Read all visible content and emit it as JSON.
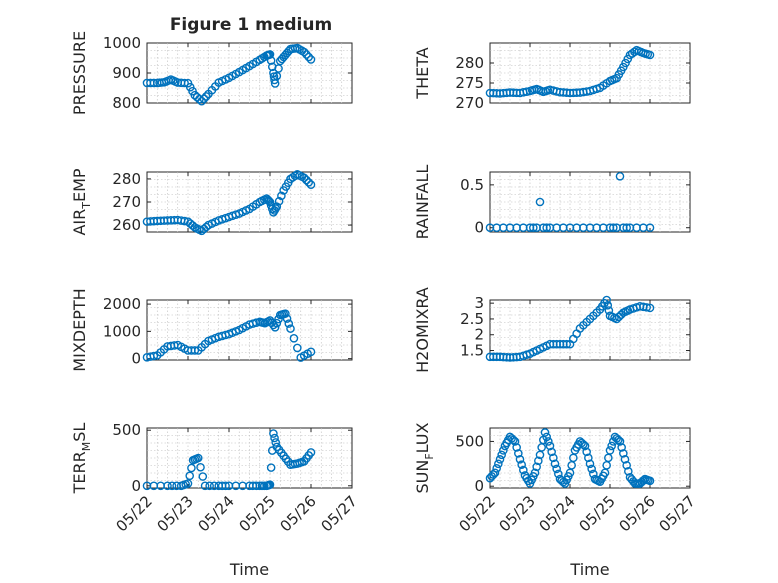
{
  "figure": {
    "title": "Figure 1 medium"
  },
  "colors": {
    "marker": "#0072BD",
    "axes": "#262626",
    "grid": "#bdbdbd"
  },
  "chart_data": [
    {
      "type": "scatter",
      "ylabel": "PRESSURE",
      "ylim": [
        800,
        1000
      ],
      "yticks": [
        800,
        900,
        1000
      ],
      "grid": true,
      "x": [
        "05/22 00:00",
        "05/22 06:00",
        "05/22 10:00",
        "05/22 14:00",
        "05/22 18:00",
        "05/23 00:00",
        "05/23 04:00",
        "05/23 08:00",
        "05/23 12:00",
        "05/23 18:00",
        "05/24 00:00",
        "05/24 06:00",
        "05/24 12:00",
        "05/24 18:00",
        "05/24 22:00",
        "05/25 00:00",
        "05/25 02:00",
        "05/25 03:00",
        "05/25 06:00",
        "05/25 09:00",
        "05/25 12:00",
        "05/25 16:00",
        "05/25 20:00",
        "05/26 00:00"
      ],
      "y": [
        867,
        867,
        869,
        878,
        868,
        866,
        826,
        806,
        830,
        868,
        884,
        903,
        923,
        944,
        958,
        962,
        900,
        865,
        940,
        960,
        980,
        983,
        970,
        945
      ]
    },
    {
      "type": "scatter",
      "ylabel": "THETA",
      "ylim": [
        270,
        285
      ],
      "yticks": [
        270,
        275,
        280
      ],
      "grid": true,
      "x": [
        "05/22 00:00",
        "05/22 06:00",
        "05/22 12:00",
        "05/22 18:00",
        "05/23 00:00",
        "05/23 04:00",
        "05/23 08:00",
        "05/23 12:00",
        "05/23 18:00",
        "05/24 00:00",
        "05/24 06:00",
        "05/24 12:00",
        "05/24 18:00",
        "05/25 00:00",
        "05/25 04:00",
        "05/25 08:00",
        "05/25 12:00",
        "05/25 16:00",
        "05/25 20:00",
        "05/26 00:00"
      ],
      "y": [
        272.5,
        272.4,
        272.6,
        272.5,
        273.0,
        273.5,
        272.8,
        273.3,
        272.7,
        272.5,
        272.6,
        273.0,
        273.8,
        275.5,
        276.2,
        279.0,
        282.0,
        283.2,
        282.5,
        282.0
      ]
    },
    {
      "type": "scatter",
      "ylabel": "AIR_TEMP",
      "ylim": [
        257,
        283
      ],
      "yticks": [
        260,
        270,
        280
      ],
      "grid": true,
      "x": [
        "05/22 00:00",
        "05/22 06:00",
        "05/22 12:00",
        "05/22 18:00",
        "05/23 00:00",
        "05/23 04:00",
        "05/23 08:00",
        "05/23 12:00",
        "05/23 18:00",
        "05/24 00:00",
        "05/24 06:00",
        "05/24 12:00",
        "05/24 18:00",
        "05/24 22:00",
        "05/25 00:00",
        "05/25 02:00",
        "05/25 04:00",
        "05/25 08:00",
        "05/25 12:00",
        "05/25 16:00",
        "05/25 20:00",
        "05/26 00:00"
      ],
      "y": [
        261.5,
        261.8,
        262.0,
        262.2,
        261.5,
        259.0,
        257.5,
        260.0,
        262.0,
        263.5,
        265.0,
        267.0,
        270.0,
        271.5,
        270.0,
        265.5,
        268.0,
        275.0,
        280.0,
        282.0,
        280.5,
        277.5
      ]
    },
    {
      "type": "scatter",
      "ylabel": "RAINFALL",
      "ylim": [
        -0.05,
        0.65
      ],
      "yticks": [
        0,
        0.5
      ],
      "grid": true,
      "x": [
        "05/22 00:00",
        "05/22 12:00",
        "05/23 00:00",
        "05/23 06:00",
        "05/23 12:00",
        "05/24 00:00",
        "05/24 12:00",
        "05/25 00:00",
        "05/25 06:00",
        "05/25 12:00",
        "05/26 00:00"
      ],
      "y": [
        0,
        0,
        0,
        0.3,
        0,
        0,
        0,
        0,
        0.6,
        0,
        0
      ]
    },
    {
      "type": "scatter",
      "ylabel": "MIXDEPTH",
      "ylim": [
        -50,
        2150
      ],
      "yticks": [
        0,
        1000,
        2000
      ],
      "grid": true,
      "x": [
        "05/22 00:00",
        "05/22 06:00",
        "05/22 12:00",
        "05/22 18:00",
        "05/23 00:00",
        "05/23 06:00",
        "05/23 12:00",
        "05/23 18:00",
        "05/24 00:00",
        "05/24 06:00",
        "05/24 12:00",
        "05/24 18:00",
        "05/24 21:00",
        "05/25 00:00",
        "05/25 03:00",
        "05/25 06:00",
        "05/25 09:00",
        "05/25 12:00",
        "05/25 18:00",
        "05/26 00:00"
      ],
      "y": [
        50,
        120,
        450,
        500,
        300,
        300,
        650,
        800,
        900,
        1050,
        1250,
        1350,
        1300,
        1400,
        1150,
        1600,
        1650,
        1100,
        40,
        250
      ]
    },
    {
      "type": "scatter",
      "ylabel": "H2OMIXRA",
      "ylim": [
        1.2,
        3.1
      ],
      "yticks": [
        1.5,
        2,
        2.5,
        3
      ],
      "grid": true,
      "x": [
        "05/22 00:00",
        "05/22 06:00",
        "05/22 12:00",
        "05/22 18:00",
        "05/23 00:00",
        "05/23 06:00",
        "05/23 12:00",
        "05/23 18:00",
        "05/24 00:00",
        "05/24 06:00",
        "05/24 12:00",
        "05/24 18:00",
        "05/24 22:00",
        "05/25 00:00",
        "05/25 04:00",
        "05/25 08:00",
        "05/25 12:00",
        "05/25 18:00",
        "05/26 00:00"
      ],
      "y": [
        1.3,
        1.3,
        1.28,
        1.3,
        1.4,
        1.55,
        1.7,
        1.7,
        1.7,
        2.2,
        2.5,
        2.8,
        3.1,
        2.6,
        2.5,
        2.7,
        2.8,
        2.9,
        2.85
      ]
    },
    {
      "type": "scatter",
      "ylabel": "TERR_MSL",
      "ylim": [
        -20,
        520
      ],
      "yticks": [
        0,
        500
      ],
      "grid": true,
      "x": [
        "05/22 00:00",
        "05/22 12:00",
        "05/22 20:00",
        "05/23 00:00",
        "05/23 03:00",
        "05/23 06:00",
        "05/23 10:00",
        "05/23 18:00",
        "05/24 00:00",
        "05/24 12:00",
        "05/24 18:00",
        "05/24 22:00",
        "05/25 00:00",
        "05/25 02:00",
        "05/25 04:00",
        "05/25 08:00",
        "05/25 12:00",
        "05/25 16:00",
        "05/25 20:00",
        "05/26 00:00"
      ],
      "y": [
        0,
        0,
        0,
        20,
        230,
        250,
        0,
        0,
        0,
        0,
        0,
        0,
        10,
        470,
        350,
        270,
        190,
        200,
        220,
        300
      ]
    },
    {
      "type": "scatter",
      "ylabel": "SUN_FLUX",
      "ylim": [
        -20,
        650
      ],
      "yticks": [
        0,
        500
      ],
      "grid": true,
      "x": [
        "05/22 00:00",
        "05/22 03:00",
        "05/22 06:00",
        "05/22 09:00",
        "05/22 12:00",
        "05/22 15:00",
        "05/22 18:00",
        "05/22 21:00",
        "05/23 00:00",
        "05/23 03:00",
        "05/23 06:00",
        "05/23 09:00",
        "05/23 12:00",
        "05/23 15:00",
        "05/23 18:00",
        "05/23 21:00",
        "05/24 00:00",
        "05/24 03:00",
        "05/24 06:00",
        "05/24 09:00",
        "05/24 12:00",
        "05/24 15:00",
        "05/24 18:00",
        "05/24 21:00",
        "05/25 00:00",
        "05/25 03:00",
        "05/25 06:00",
        "05/25 09:00",
        "05/25 12:00",
        "05/25 15:00",
        "05/25 18:00",
        "05/25 21:00",
        "05/26 00:00"
      ],
      "y": [
        90,
        150,
        300,
        450,
        550,
        500,
        300,
        120,
        30,
        150,
        350,
        600,
        450,
        250,
        80,
        30,
        150,
        400,
        500,
        450,
        250,
        80,
        50,
        150,
        400,
        550,
        500,
        300,
        100,
        30,
        30,
        80,
        60
      ]
    }
  ],
  "panels": [
    {
      "ylabel_main": "PRESSURE",
      "ylabel_sub": "",
      "ylabel_tail": ""
    },
    {
      "ylabel_main": "THETA",
      "ylabel_sub": "",
      "ylabel_tail": ""
    },
    {
      "ylabel_main": "AIR",
      "ylabel_sub": "T",
      "ylabel_tail": "EMP"
    },
    {
      "ylabel_main": "RAINFALL",
      "ylabel_sub": "",
      "ylabel_tail": ""
    },
    {
      "ylabel_main": "MIXDEPTH",
      "ylabel_sub": "",
      "ylabel_tail": ""
    },
    {
      "ylabel_main": "H2OMIXRA",
      "ylabel_sub": "",
      "ylabel_tail": ""
    },
    {
      "ylabel_main": "TERR",
      "ylabel_sub": "M",
      "ylabel_tail": "SL"
    },
    {
      "ylabel_main": "SUN",
      "ylabel_sub": "F",
      "ylabel_tail": "LUX"
    }
  ],
  "xaxis": {
    "label": "Time",
    "ticks": [
      "05/22",
      "05/23",
      "05/24",
      "05/25",
      "05/26",
      "05/27"
    ],
    "range": [
      "05/22",
      "05/27"
    ]
  }
}
